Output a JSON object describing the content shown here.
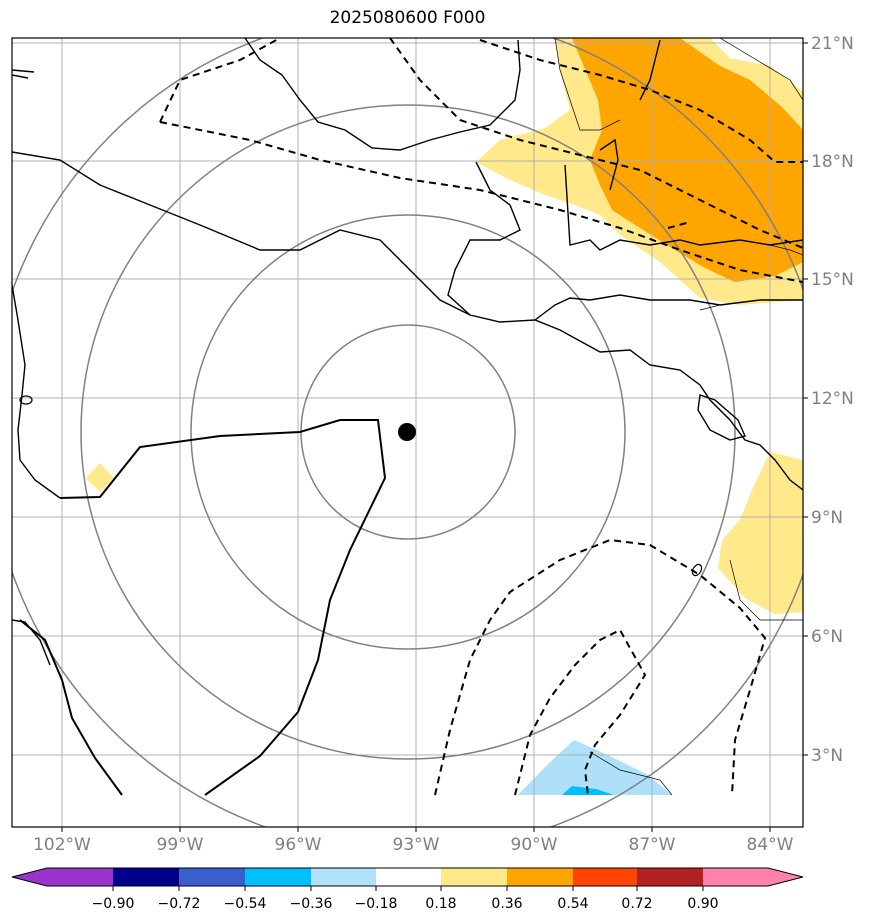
{
  "title": "2025080600 F000",
  "map": {
    "lon_ticks": [
      "102°W",
      "99°W",
      "96°W",
      "93°W",
      "90°W",
      "87°W",
      "84°W"
    ],
    "lat_ticks": [
      "21°N",
      "18°N",
      "15°N",
      "12°N",
      "9°N",
      "6°N",
      "3°N"
    ],
    "center_marker": {
      "lat": 11.0,
      "lon": -93.3
    },
    "range_rings": 4,
    "fill_colors": {
      "light_yellow": "#ffe98a",
      "orange": "#ffa500",
      "light_blue": "#aee0fa",
      "deep_sky": "#00bfff"
    }
  },
  "colorbar": {
    "tick_labels": [
      "−0.90",
      "−0.72",
      "−0.54",
      "−0.36",
      "−0.18",
      "0.18",
      "0.36",
      "0.54",
      "0.72",
      "0.90"
    ],
    "colors": [
      "#9933cc",
      "#00008b",
      "#3a5fcd",
      "#00bfff",
      "#b0e0fa",
      "#ffffff",
      "#ffe98a",
      "#ffa500",
      "#ff4500",
      "#b22222",
      "#ff82ab"
    ]
  }
}
